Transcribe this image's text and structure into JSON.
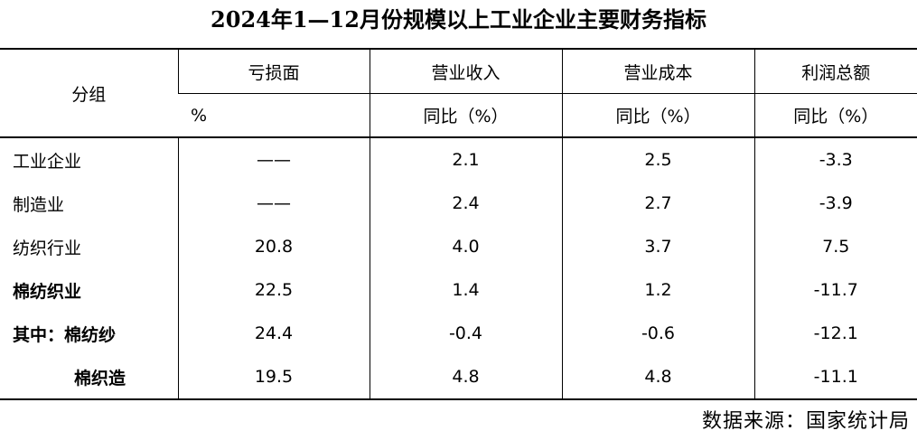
{
  "header": {
    "title": "2024年1—12月份规模以上工业企业主要财务指标"
  },
  "table": {
    "group_header": "分组",
    "columns": [
      {
        "name": "亏损面",
        "unit": "%"
      },
      {
        "name": "营业收入",
        "unit": "同比（%）"
      },
      {
        "name": "营业成本",
        "unit": "同比（%）"
      },
      {
        "name": "利润总额",
        "unit": "同比（%）"
      }
    ],
    "rows": [
      {
        "label": "工业企业",
        "cells": [
          "——",
          "2.1",
          "2.5",
          "-3.3"
        ]
      },
      {
        "label": "制造业",
        "cells": [
          "——",
          "2.4",
          "2.7",
          "-3.9"
        ]
      },
      {
        "label": "纺织行业",
        "cells": [
          "20.8",
          "4.0",
          "3.7",
          "7.5"
        ]
      },
      {
        "label": "棉纺织业",
        "cells": [
          "22.5",
          "1.4",
          "1.2",
          "-11.7"
        ]
      },
      {
        "label": "其中：棉纺纱",
        "cells": [
          "24.4",
          "-0.4",
          "-0.6",
          "-12.1"
        ]
      },
      {
        "label": "棉织造",
        "cells": [
          "19.5",
          "4.8",
          "4.8",
          "-11.1"
        ]
      }
    ]
  },
  "source": "数据来源：国家统计局"
}
